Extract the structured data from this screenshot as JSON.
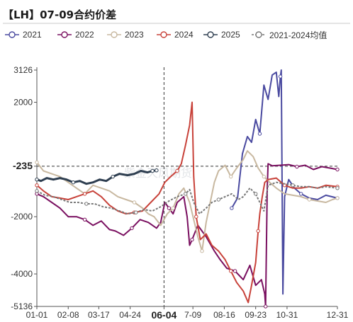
{
  "title": "【LH】07-09合约价差",
  "watermark": "紫金天风期货",
  "chart_data": {
    "type": "line",
    "title": "【LH】07-09合约价差",
    "xlabel": "",
    "ylabel": "",
    "x_ticks": [
      "01-01",
      "02-08",
      "03-17",
      "04-24",
      "06-04",
      "7-09",
      "08-16",
      "09-23",
      "10-31",
      "12-31"
    ],
    "x_tick_days": [
      0,
      38,
      75,
      113,
      154,
      189,
      227,
      265,
      303,
      364
    ],
    "highlight_x": "06-04",
    "y_ticks": [
      3126,
      2000,
      -235,
      -2000,
      -4000,
      -5136
    ],
    "highlight_y": -235,
    "ylim": [
      -5136,
      3126
    ],
    "xlim": [
      0,
      364
    ],
    "grid": false,
    "legend_position": "top",
    "series": [
      {
        "name": "2021",
        "color": "#4a4aa0",
        "dash": "",
        "points": [
          [
            236,
            -1700
          ],
          [
            243,
            -1350
          ],
          [
            249,
            200
          ],
          [
            255,
            800
          ],
          [
            260,
            600
          ],
          [
            265,
            1400
          ],
          [
            270,
            900
          ],
          [
            275,
            2600
          ],
          [
            280,
            2100
          ],
          [
            285,
            2950
          ],
          [
            290,
            3050
          ],
          [
            293,
            2200
          ],
          [
            295,
            2900
          ],
          [
            296,
            3126
          ],
          [
            298,
            -4700
          ],
          [
            300,
            -1300
          ],
          [
            305,
            -700
          ],
          [
            312,
            -1000
          ],
          [
            320,
            -1200
          ],
          [
            330,
            -1350
          ],
          [
            340,
            -1400
          ],
          [
            350,
            -1250
          ],
          [
            364,
            -1350
          ]
        ]
      },
      {
        "name": "2022",
        "color": "#7a1060",
        "dash": "",
        "points": [
          [
            0,
            -1200
          ],
          [
            8,
            -1300
          ],
          [
            18,
            -1500
          ],
          [
            28,
            -1700
          ],
          [
            38,
            -2000
          ],
          [
            48,
            -2000
          ],
          [
            58,
            -2100
          ],
          [
            68,
            -2300
          ],
          [
            78,
            -2150
          ],
          [
            88,
            -2450
          ],
          [
            95,
            -2500
          ],
          [
            105,
            -2650
          ],
          [
            115,
            -2400
          ],
          [
            125,
            -2100
          ],
          [
            135,
            -2200
          ],
          [
            145,
            -2400
          ],
          [
            150,
            -2200
          ],
          [
            155,
            -1500
          ],
          [
            160,
            -1700
          ],
          [
            165,
            -1900
          ],
          [
            170,
            -1500
          ],
          [
            178,
            -1300
          ],
          [
            182,
            -2000
          ],
          [
            185,
            -3000
          ],
          [
            188,
            -2800
          ],
          [
            195,
            -2300
          ],
          [
            205,
            -2700
          ],
          [
            215,
            -3200
          ],
          [
            222,
            -3500
          ],
          [
            230,
            -3800
          ],
          [
            240,
            -3900
          ],
          [
            250,
            -4200
          ],
          [
            258,
            -3700
          ],
          [
            265,
            -4400
          ],
          [
            272,
            -4200
          ],
          [
            276,
            -4700
          ],
          [
            277,
            -5136
          ],
          [
            279,
            -1000
          ],
          [
            280,
            -150
          ],
          [
            285,
            -220
          ],
          [
            295,
            -200
          ],
          [
            305,
            -180
          ],
          [
            315,
            -250
          ],
          [
            325,
            -200
          ],
          [
            335,
            -350
          ],
          [
            345,
            -250
          ],
          [
            355,
            -300
          ],
          [
            364,
            -350
          ]
        ]
      },
      {
        "name": "2023",
        "color": "#c8b8a0",
        "dash": "",
        "points": [
          [
            0,
            -100
          ],
          [
            8,
            -400
          ],
          [
            18,
            -500
          ],
          [
            28,
            -600
          ],
          [
            38,
            -800
          ],
          [
            48,
            -1000
          ],
          [
            58,
            -1200
          ],
          [
            68,
            -900
          ],
          [
            78,
            -1000
          ],
          [
            88,
            -1100
          ],
          [
            98,
            -1300
          ],
          [
            108,
            -1400
          ],
          [
            118,
            -1500
          ],
          [
            128,
            -1700
          ],
          [
            135,
            -1900
          ],
          [
            142,
            -2000
          ],
          [
            150,
            -2300
          ],
          [
            158,
            -1900
          ],
          [
            165,
            -1700
          ],
          [
            172,
            -1200
          ],
          [
            178,
            -1000
          ],
          [
            185,
            -1500
          ],
          [
            190,
            -2100
          ],
          [
            195,
            -2700
          ],
          [
            200,
            -3200
          ],
          [
            205,
            -2200
          ],
          [
            210,
            -1500
          ],
          [
            215,
            -800
          ],
          [
            220,
            -400
          ],
          [
            228,
            -200
          ],
          [
            235,
            -600
          ],
          [
            242,
            -300
          ],
          [
            250,
            0
          ],
          [
            255,
            300
          ],
          [
            262,
            100
          ],
          [
            268,
            -300
          ],
          [
            275,
            -600
          ],
          [
            282,
            -800
          ],
          [
            290,
            -1000
          ],
          [
            300,
            -1200
          ],
          [
            310,
            -1250
          ],
          [
            320,
            -1300
          ],
          [
            330,
            -1400
          ],
          [
            340,
            -1450
          ],
          [
            350,
            -1500
          ],
          [
            358,
            -1400
          ],
          [
            364,
            -1350
          ]
        ]
      },
      {
        "name": "2024",
        "color": "#c8423a",
        "dash": "",
        "points": [
          [
            0,
            -900
          ],
          [
            8,
            -1100
          ],
          [
            18,
            -1300
          ],
          [
            28,
            -1350
          ],
          [
            38,
            -1400
          ],
          [
            48,
            -1300
          ],
          [
            58,
            -1200
          ],
          [
            68,
            -1100
          ],
          [
            78,
            -1300
          ],
          [
            88,
            -1600
          ],
          [
            98,
            -1800
          ],
          [
            108,
            -1900
          ],
          [
            118,
            -1850
          ],
          [
            128,
            -1800
          ],
          [
            138,
            -1500
          ],
          [
            148,
            -1200
          ],
          [
            155,
            -800
          ],
          [
            162,
            -600
          ],
          [
            170,
            -400
          ],
          [
            175,
            -150
          ],
          [
            180,
            500
          ],
          [
            185,
            1200
          ],
          [
            188,
            2000
          ],
          [
            190,
            -600
          ],
          [
            193,
            -2000
          ],
          [
            198,
            -2800
          ],
          [
            205,
            -2600
          ],
          [
            212,
            -3000
          ],
          [
            220,
            -3200
          ],
          [
            228,
            -3500
          ],
          [
            235,
            -3900
          ],
          [
            242,
            -4300
          ],
          [
            250,
            -4600
          ],
          [
            256,
            -5000
          ],
          [
            260,
            -4400
          ],
          [
            265,
            -3600
          ],
          [
            268,
            -2500
          ],
          [
            270,
            -1900
          ],
          [
            273,
            -1300
          ],
          [
            276,
            -800
          ],
          [
            280,
            -700
          ],
          [
            290,
            -650
          ],
          [
            300,
            -900
          ],
          [
            310,
            -1000
          ],
          [
            320,
            -1000
          ],
          [
            330,
            -950
          ],
          [
            340,
            -1000
          ],
          [
            350,
            -900
          ],
          [
            364,
            -950
          ]
        ]
      },
      {
        "name": "2025",
        "color": "#2e3e50",
        "dash": "",
        "points": [
          [
            0,
            -700
          ],
          [
            5,
            -750
          ],
          [
            12,
            -650
          ],
          [
            20,
            -700
          ],
          [
            28,
            -650
          ],
          [
            36,
            -700
          ],
          [
            44,
            -800
          ],
          [
            52,
            -750
          ],
          [
            60,
            -850
          ],
          [
            68,
            -800
          ],
          [
            76,
            -700
          ],
          [
            84,
            -750
          ],
          [
            92,
            -600
          ],
          [
            100,
            -500
          ],
          [
            110,
            -550
          ],
          [
            118,
            -500
          ],
          [
            126,
            -400
          ],
          [
            134,
            -450
          ],
          [
            140,
            -400
          ],
          [
            145,
            -380
          ]
        ]
      },
      {
        "name": "2021-2024均值",
        "color": "#777777",
        "dash": "3,2",
        "points": [
          [
            0,
            -1100
          ],
          [
            10,
            -1250
          ],
          [
            20,
            -1300
          ],
          [
            30,
            -1400
          ],
          [
            40,
            -1500
          ],
          [
            50,
            -1500
          ],
          [
            60,
            -1550
          ],
          [
            70,
            -1550
          ],
          [
            80,
            -1650
          ],
          [
            90,
            -1700
          ],
          [
            100,
            -1800
          ],
          [
            110,
            -1900
          ],
          [
            120,
            -1850
          ],
          [
            130,
            -1750
          ],
          [
            140,
            -1800
          ],
          [
            150,
            -1650
          ],
          [
            160,
            -1450
          ],
          [
            170,
            -1300
          ],
          [
            180,
            -1200
          ],
          [
            185,
            -1050
          ],
          [
            190,
            -1500
          ],
          [
            197,
            -1900
          ],
          [
            205,
            -1700
          ],
          [
            212,
            -1500
          ],
          [
            220,
            -1400
          ],
          [
            228,
            -1300
          ],
          [
            236,
            -1200
          ],
          [
            244,
            -1400
          ],
          [
            250,
            -1300
          ],
          [
            258,
            -1000
          ],
          [
            265,
            -1200
          ],
          [
            270,
            -1500
          ],
          [
            275,
            -1800
          ],
          [
            280,
            -900
          ],
          [
            290,
            -800
          ],
          [
            300,
            -850
          ],
          [
            310,
            -900
          ],
          [
            320,
            -950
          ],
          [
            330,
            -950
          ],
          [
            340,
            -1000
          ],
          [
            350,
            -950
          ],
          [
            364,
            -1000
          ]
        ]
      }
    ]
  }
}
